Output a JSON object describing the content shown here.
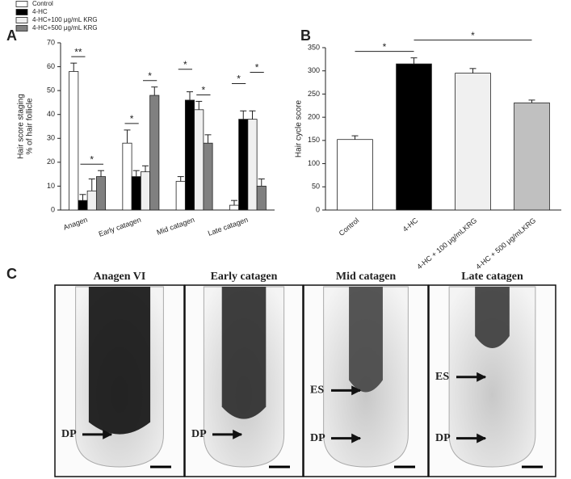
{
  "chart_data": [
    {
      "type": "bar",
      "panel_label": "A",
      "ylabel": [
        "Hair score staging",
        "% of hair follicle"
      ],
      "categories": [
        "Anagen",
        "Early catagen",
        "Mid catagen",
        "Late catagen"
      ],
      "series": [
        {
          "name": "Control",
          "color": "#ffffff",
          "values": [
            58,
            28,
            12,
            2
          ],
          "errors": [
            3.5,
            5.5,
            2,
            2
          ]
        },
        {
          "name": "4-HC",
          "color": "#000000",
          "values": [
            4,
            14,
            46,
            38
          ],
          "errors": [
            2.5,
            2.5,
            3.5,
            3.5
          ]
        },
        {
          "name": "4-HC+100 μg/mL KRG",
          "color": "#f0f0f0",
          "values": [
            8,
            16,
            42,
            38
          ],
          "errors": [
            5,
            2.5,
            3.5,
            3.5
          ]
        },
        {
          "name": "4-HC+500 μg/mL KRG",
          "color": "#808080",
          "values": [
            14,
            48,
            28,
            10
          ],
          "errors": [
            2.5,
            3.5,
            3.5,
            3
          ]
        }
      ],
      "ylim": [
        0,
        70
      ],
      "yticks": [
        0,
        10,
        20,
        30,
        40,
        50,
        60,
        70
      ],
      "legend": "upper left",
      "annotations": [
        {
          "text": "**",
          "category": 0,
          "series": [
            0,
            1
          ]
        },
        {
          "text": "*",
          "category": 0,
          "series": [
            1,
            3
          ]
        },
        {
          "text": "*",
          "category": 1,
          "series": [
            0,
            1
          ]
        },
        {
          "text": "*",
          "category": 1,
          "series": [
            2,
            3
          ]
        },
        {
          "text": "*",
          "category": 2,
          "series": [
            0,
            1
          ]
        },
        {
          "text": "*",
          "category": 2,
          "series": [
            2,
            3
          ]
        },
        {
          "text": "*",
          "category": 3,
          "series": [
            0,
            1
          ]
        },
        {
          "text": "*",
          "category": 3,
          "series": [
            2,
            3
          ]
        }
      ]
    },
    {
      "type": "bar",
      "panel_label": "B",
      "ylabel": [
        "Hair cycle score"
      ],
      "categories": [
        "Control",
        "4-HC",
        "4-HC + 100 μg/mLKRG",
        "4-HC + 500 μg/mLKRG"
      ],
      "values": [
        152,
        315,
        295,
        231
      ],
      "errors": [
        8,
        13,
        10,
        6
      ],
      "colors": [
        "#ffffff",
        "#000000",
        "#f0f0f0",
        "#c0c0c0"
      ],
      "ylim": [
        0,
        350
      ],
      "yticks": [
        0,
        50,
        100,
        150,
        200,
        250,
        300,
        350
      ],
      "annotations": [
        {
          "text": "*",
          "categories": [
            0,
            1
          ]
        },
        {
          "text": "*",
          "categories": [
            1,
            3
          ]
        }
      ]
    }
  ],
  "panel_c": {
    "panel_label": "C",
    "images": [
      {
        "title": "Anagen VI",
        "markers": [
          "DP"
        ]
      },
      {
        "title": "Early catagen",
        "markers": [
          "DP"
        ]
      },
      {
        "title": "Mid catagen",
        "markers": [
          "ES",
          "DP"
        ]
      },
      {
        "title": "Late catagen",
        "markers": [
          "ES",
          "DP"
        ]
      }
    ]
  }
}
